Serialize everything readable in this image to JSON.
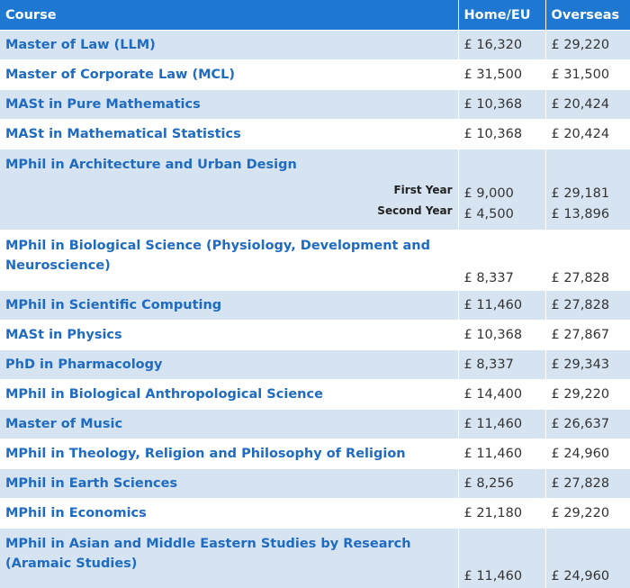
{
  "header": {
    "course": "Course",
    "home": "Home/EU",
    "overseas": "Overseas"
  },
  "rows": [
    {
      "course": "Master of Law (LLM)",
      "home": "£ 16,320",
      "overseas": "£ 29,220"
    },
    {
      "course": "Master of Corporate Law (MCL)",
      "home": "£ 31,500",
      "overseas": "£ 31,500"
    },
    {
      "course": "MASt in Pure Mathematics",
      "home": "£ 10,368",
      "overseas": "£ 20,424"
    },
    {
      "course": "MASt in Mathematical Statistics",
      "home": "£ 10,368",
      "overseas": "£ 20,424"
    },
    {
      "course": "MPhil in Architecture and Urban Design",
      "years": [
        {
          "label": "First Year",
          "home": "£ 9,000",
          "overseas": "£ 29,181"
        },
        {
          "label": "Second Year",
          "home": "£ 4,500",
          "overseas": "£ 13,896"
        }
      ]
    },
    {
      "course": "MPhil in Biological Science (Physiology, Development and Neuroscience)",
      "home": "£ 8,337",
      "overseas": "£ 27,828"
    },
    {
      "course": "MPhil in Scientific Computing",
      "home": "£ 11,460",
      "overseas": "£ 27,828"
    },
    {
      "course": "MASt in Physics",
      "home": "£ 10,368",
      "overseas": "£ 27,867"
    },
    {
      "course": "PhD in Pharmacology",
      "home": "£ 8,337",
      "overseas": "£ 29,343"
    },
    {
      "course": "MPhil in Biological Anthropological Science",
      "home": "£ 14,400",
      "overseas": "£ 29,220"
    },
    {
      "course": "Master of Music",
      "home": "£ 11,460",
      "overseas": "£ 26,637"
    },
    {
      "course": "MPhil in Theology, Religion and Philosophy of Religion",
      "home": "£ 11,460",
      "overseas": "£ 24,960"
    },
    {
      "course": "MPhil in Earth Sciences",
      "home": "£ 8,256",
      "overseas": "£ 27,828"
    },
    {
      "course": "MPhil in Economics",
      "home": "£ 21,180",
      "overseas": "£ 29,220"
    },
    {
      "course": "MPhil in Asian and Middle Eastern Studies by Research (Aramaic Studies)",
      "home": "£ 11,460",
      "overseas": "£ 24,960"
    }
  ],
  "colors": {
    "header_bg": "#1E78D2",
    "shaded_row": "#D6E4F2",
    "link": "#1F6BC1"
  }
}
